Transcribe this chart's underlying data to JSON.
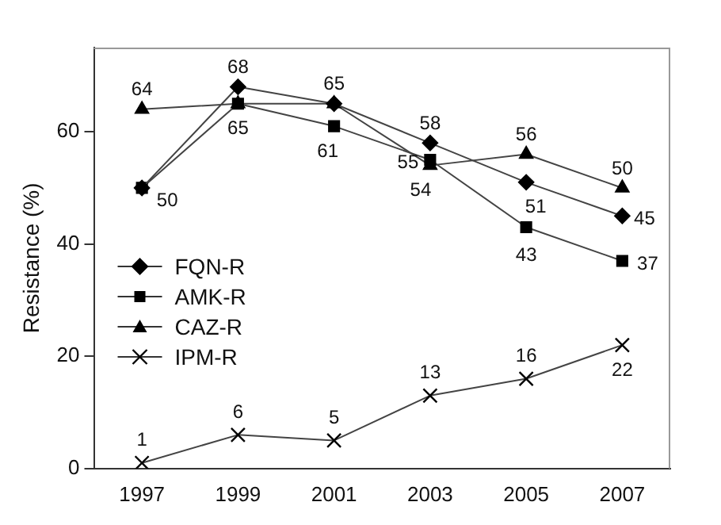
{
  "chart_data": {
    "type": "line",
    "ylabel": "Resistance (%)",
    "categories": [
      "1997",
      "1999",
      "2001",
      "2003",
      "2005",
      "2007"
    ],
    "series": [
      {
        "name": "FQN-R",
        "color": "#000000",
        "marker": "diamond",
        "values": [
          50,
          68,
          65,
          58,
          51,
          45
        ],
        "value_labels": [
          "50",
          "68",
          "65",
          "58",
          "51",
          "45"
        ]
      },
      {
        "name": "AMK-R",
        "color": "#000000",
        "marker": "square",
        "values": [
          50,
          65,
          61,
          55,
          43,
          37
        ],
        "value_labels": [
          null,
          "65",
          "61",
          "55",
          "43",
          "37"
        ]
      },
      {
        "name": "CAZ-R",
        "color": "#000000",
        "marker": "triangle",
        "values": [
          64,
          65,
          65,
          54,
          56,
          50
        ],
        "value_labels": [
          "64",
          null,
          null,
          "54",
          "56",
          "50"
        ]
      },
      {
        "name": "IPM-R",
        "color": "#000000",
        "marker": "cross",
        "values": [
          1,
          6,
          5,
          13,
          16,
          22
        ],
        "value_labels": [
          "1",
          "6",
          "5",
          "13",
          "16",
          "22"
        ]
      }
    ],
    "ylim": [
      0,
      75
    ],
    "yticks": [
      0,
      20,
      40,
      60
    ],
    "grid": false,
    "legend": "left",
    "line_style": "solid"
  }
}
